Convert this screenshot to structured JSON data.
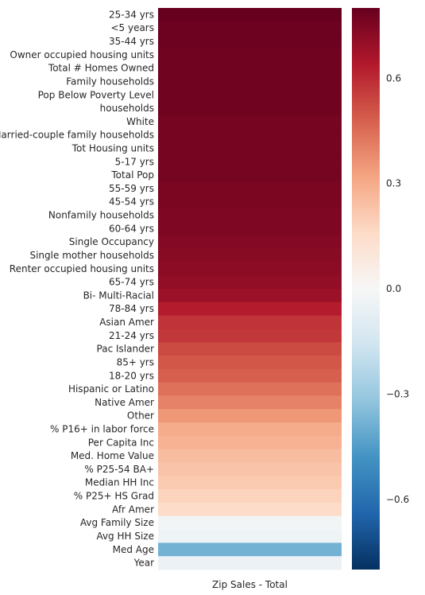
{
  "chart_data": {
    "type": "heatmap",
    "title": "",
    "xlabel": "",
    "ylabel": "",
    "columns": [
      "Zip Sales - Total"
    ],
    "rows": [
      {
        "label": "25-34 yrs",
        "value": 0.8
      },
      {
        "label": "<5 years",
        "value": 0.79
      },
      {
        "label": "35-44 yrs",
        "value": 0.79
      },
      {
        "label": "Owner occupied housing units",
        "value": 0.78
      },
      {
        "label": "Total # Homes Owned",
        "value": 0.78
      },
      {
        "label": "Family households",
        "value": 0.78
      },
      {
        "label": "Pop Below Poverty Level",
        "value": 0.78
      },
      {
        "label": "households",
        "value": 0.78
      },
      {
        "label": "White",
        "value": 0.77
      },
      {
        "label": "Married-couple family households",
        "value": 0.77
      },
      {
        "label": "Tot Housing units",
        "value": 0.77
      },
      {
        "label": "5-17 yrs",
        "value": 0.77
      },
      {
        "label": "Total Pop",
        "value": 0.77
      },
      {
        "label": "55-59 yrs",
        "value": 0.76
      },
      {
        "label": "45-54 yrs",
        "value": 0.76
      },
      {
        "label": "Nonfamily households",
        "value": 0.75
      },
      {
        "label": "60-64 yrs",
        "value": 0.75
      },
      {
        "label": "Single Occupancy",
        "value": 0.74
      },
      {
        "label": "Single mother households",
        "value": 0.73
      },
      {
        "label": "Renter occupied housing units",
        "value": 0.72
      },
      {
        "label": "65-74 yrs",
        "value": 0.71
      },
      {
        "label": "Bi- Multi-Racial",
        "value": 0.69
      },
      {
        "label": "78-84 yrs",
        "value": 0.63
      },
      {
        "label": "Asian Amer",
        "value": 0.58
      },
      {
        "label": "21-24 yrs",
        "value": 0.57
      },
      {
        "label": "Pac Islander",
        "value": 0.53
      },
      {
        "label": "85+ yrs",
        "value": 0.5
      },
      {
        "label": "18-20 yrs",
        "value": 0.48
      },
      {
        "label": "Hispanic or Latino",
        "value": 0.44
      },
      {
        "label": "Native Amer",
        "value": 0.4
      },
      {
        "label": "Other",
        "value": 0.35
      },
      {
        "label": "% P16+ in labor force",
        "value": 0.3
      },
      {
        "label": "Per Capita Inc",
        "value": 0.28
      },
      {
        "label": "Med. Home Value",
        "value": 0.25
      },
      {
        "label": "% P25-54 BA+",
        "value": 0.23
      },
      {
        "label": "Median HH Inc",
        "value": 0.21
      },
      {
        "label": "% P25+ HS Grad",
        "value": 0.18
      },
      {
        "label": "Afr Amer",
        "value": 0.15
      },
      {
        "label": "Avg Family Size",
        "value": -0.02
      },
      {
        "label": "Avg HH Size",
        "value": -0.04
      },
      {
        "label": "Med Age",
        "value": -0.38
      },
      {
        "label": "Year",
        "value": -0.05
      }
    ],
    "vmin": -0.8,
    "vmax": 0.8,
    "colormap": "RdBu_r",
    "colorbar": {
      "ticks": [
        -0.6,
        -0.3,
        0.0,
        0.3,
        0.6
      ],
      "tick_labels": [
        "−0.6",
        "−0.3",
        "0.0",
        "0.3",
        "0.6"
      ]
    },
    "grid": false,
    "colors": {
      "low": "#053061",
      "mid": "#f7f7f7",
      "high": "#67001f"
    }
  }
}
